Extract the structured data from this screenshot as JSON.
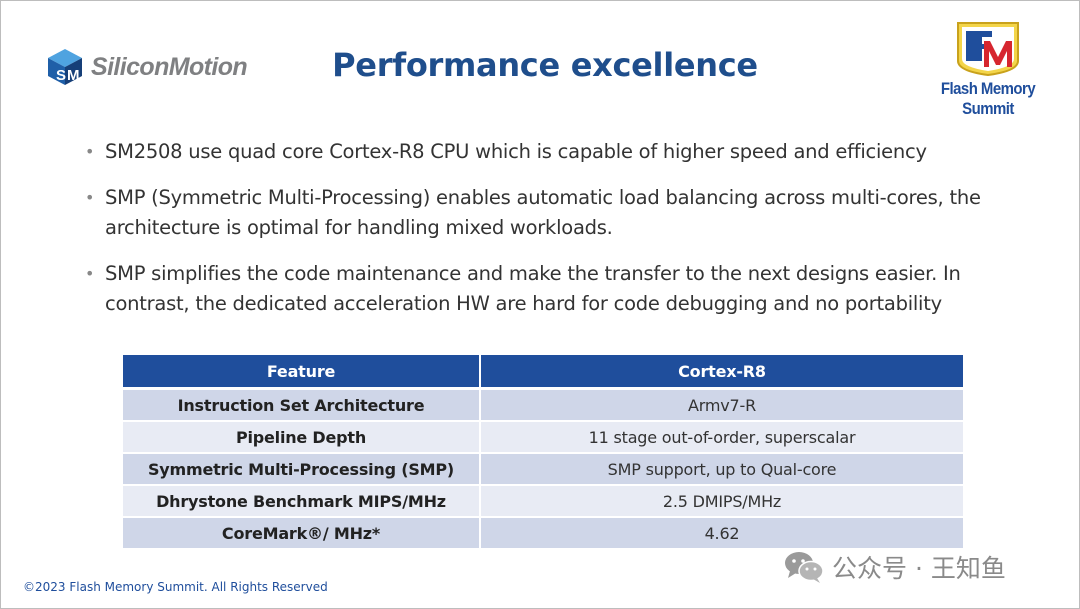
{
  "header": {
    "left_logo": {
      "text": "SiliconMotion",
      "icon": "silicon-motion-cube-logo"
    },
    "title": "Performance excellence",
    "right_logo": {
      "text": "Flash Memory Summit",
      "icon": "fms-emblem-logo"
    }
  },
  "bullets": [
    {
      "text": "SM2508 use quad core Cortex-R8 CPU which is capable of higher speed and efficiency"
    },
    {
      "text": "SMP (Symmetric Multi-Processing) enables automatic load balancing across multi-cores, the architecture is optimal for handling mixed workloads."
    },
    {
      "text": "SMP simplifies the code maintenance and make the transfer to the next designs easier. In contrast, the dedicated acceleration HW are hard for code debugging and no portability"
    }
  ],
  "table": {
    "headers": [
      "Feature",
      "Cortex-R8"
    ],
    "rows": [
      [
        "Instruction Set Architecture",
        "Armv7-R"
      ],
      [
        "Pipeline Depth",
        "11 stage out-of-order, superscalar"
      ],
      [
        "Symmetric Multi-Processing (SMP)",
        "SMP support, up to Qual-core"
      ],
      [
        "Dhrystone Benchmark MIPS/MHz",
        "2.5 DMIPS/MHz"
      ],
      [
        "CoreMark®/ MHz*",
        "4.62"
      ]
    ]
  },
  "footer": {
    "copyright": "©2023 Flash Memory Summit. All Rights Reserved"
  },
  "watermark": {
    "text": "公众号 · 王知鱼",
    "icon": "wechat-icon"
  },
  "colors": {
    "title": "#1f4e8c",
    "table_header": "#1f4e9c",
    "row_dark": "#cfd6e8",
    "row_light": "#e8ebf4"
  }
}
